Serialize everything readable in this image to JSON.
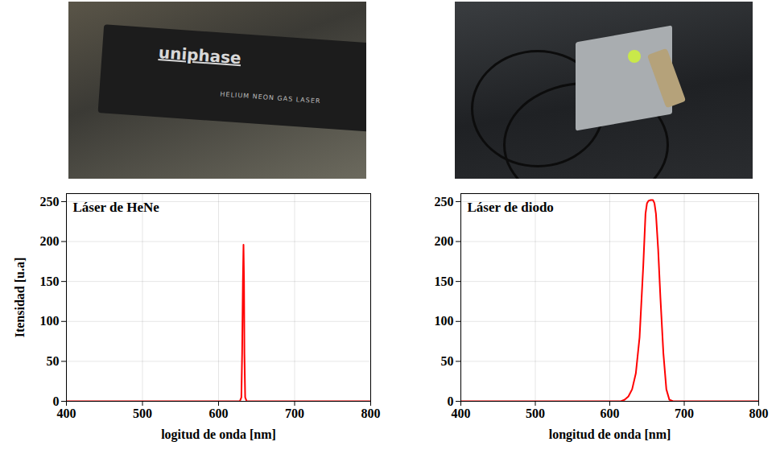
{
  "photos": [
    {
      "texts": [
        "uniphase",
        "HELIUM NEON GAS LASER"
      ]
    },
    {
      "texts": []
    }
  ],
  "chart_data": [
    {
      "type": "line",
      "title": "Láser de HeNe",
      "x_label": "logitud de onda [nm]",
      "y_label": "Itensidad [u.a]",
      "x": [
        400,
        628,
        630,
        631,
        632,
        632.8,
        633.5,
        634,
        635,
        637,
        800
      ],
      "values": [
        0,
        0,
        5,
        60,
        150,
        196,
        150,
        60,
        5,
        0,
        0
      ],
      "color": "#ff0000",
      "xlim": [
        400,
        800
      ],
      "xticks": [
        400,
        500,
        600,
        700,
        800
      ],
      "ylim": [
        0,
        260
      ],
      "yticks": [
        0,
        50,
        100,
        150,
        200,
        250
      ],
      "grid": true
    },
    {
      "type": "line",
      "title": "Láser de diodo",
      "x_label": "longitud de onda [nm]",
      "x": [
        400,
        615,
        620,
        625,
        630,
        635,
        640,
        645,
        648,
        650,
        652,
        655,
        658,
        660,
        662,
        665,
        668,
        672,
        676,
        680,
        685,
        800
      ],
      "values": [
        0,
        0,
        2,
        6,
        15,
        35,
        80,
        170,
        235,
        248,
        251,
        252,
        252,
        248,
        235,
        190,
        130,
        60,
        15,
        2,
        0,
        0
      ],
      "color": "#ff0000",
      "xlim": [
        400,
        800
      ],
      "xticks": [
        400,
        500,
        600,
        700,
        800
      ],
      "ylim": [
        0,
        260
      ],
      "yticks": [
        0,
        50,
        100,
        150,
        200,
        250
      ],
      "grid": true
    }
  ]
}
